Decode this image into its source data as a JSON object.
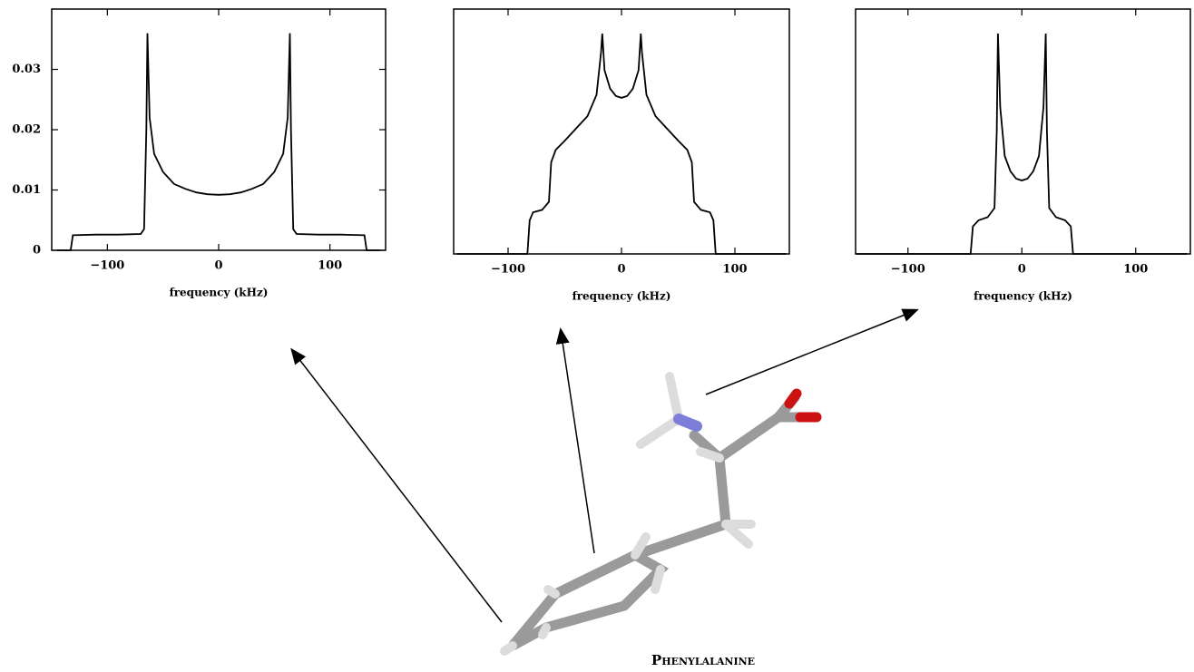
{
  "chart_data": [
    {
      "type": "line",
      "xlabel": "frequency (kHz)",
      "xlim": [
        -150,
        150
      ],
      "ylim": [
        0,
        0.04
      ],
      "xticks": [
        {
          "value": -100,
          "label": "−100"
        },
        0,
        100
      ],
      "yticks": [
        0,
        0.01,
        0.02,
        0.03
      ],
      "color": "#000000",
      "x": [
        -145,
        -133,
        -131,
        -110,
        -90,
        -70,
        -67,
        -65,
        -64,
        -62,
        -58,
        -50,
        -40,
        -30,
        -20,
        -10,
        0,
        10,
        20,
        30,
        40,
        50,
        58,
        62,
        64,
        65,
        67,
        70,
        90,
        110,
        131,
        133,
        145
      ],
      "values": [
        0,
        0,
        0.0025,
        0.0026,
        0.0026,
        0.0027,
        0.0035,
        0.02,
        0.036,
        0.022,
        0.016,
        0.013,
        0.011,
        0.0102,
        0.0096,
        0.0093,
        0.0092,
        0.0093,
        0.0096,
        0.0102,
        0.011,
        0.013,
        0.016,
        0.022,
        0.036,
        0.02,
        0.0035,
        0.0027,
        0.0026,
        0.0026,
        0.0025,
        0,
        0
      ]
    },
    {
      "type": "line",
      "xlabel": "frequency (kHz)",
      "xlim": [
        -148,
        148
      ],
      "ylim": [
        0,
        0.04
      ],
      "xticks": [
        {
          "value": -100,
          "label": "−100"
        },
        0,
        100
      ],
      "color": "#000000",
      "x": [
        -145,
        -83,
        -81,
        -78,
        -70,
        -64,
        -62,
        -58,
        -50,
        -40,
        -30,
        -22,
        -18,
        -17,
        -15,
        -10,
        -5,
        0,
        5,
        10,
        15,
        17,
        18,
        22,
        30,
        40,
        50,
        58,
        62,
        64,
        70,
        78,
        81,
        83,
        145
      ],
      "values": [
        0,
        0,
        0.0055,
        0.0068,
        0.0072,
        0.0085,
        0.015,
        0.017,
        0.0185,
        0.0205,
        0.0225,
        0.026,
        0.033,
        0.036,
        0.03,
        0.027,
        0.0258,
        0.0255,
        0.0258,
        0.027,
        0.03,
        0.036,
        0.033,
        0.026,
        0.0225,
        0.0205,
        0.0185,
        0.017,
        0.015,
        0.0085,
        0.0072,
        0.0068,
        0.0055,
        0,
        0
      ]
    },
    {
      "type": "line",
      "xlabel": "frequency (kHz)",
      "xlim": [
        -146,
        148
      ],
      "ylim": [
        0,
        0.04
      ],
      "xticks": [
        {
          "value": -100,
          "label": "−100"
        },
        0,
        100
      ],
      "color": "#000000",
      "x": [
        -145,
        -45,
        -43,
        -38,
        -30,
        -24,
        -22,
        -21,
        -19,
        -15,
        -10,
        -5,
        0,
        5,
        10,
        15,
        19,
        21,
        22,
        24,
        30,
        38,
        43,
        45,
        145
      ],
      "values": [
        0,
        0,
        0.0045,
        0.0055,
        0.006,
        0.0075,
        0.02,
        0.036,
        0.024,
        0.016,
        0.0135,
        0.0123,
        0.012,
        0.0123,
        0.0135,
        0.016,
        0.024,
        0.036,
        0.02,
        0.0075,
        0.006,
        0.0055,
        0.0045,
        0,
        0
      ]
    }
  ],
  "caption": "Phenylalanine"
}
